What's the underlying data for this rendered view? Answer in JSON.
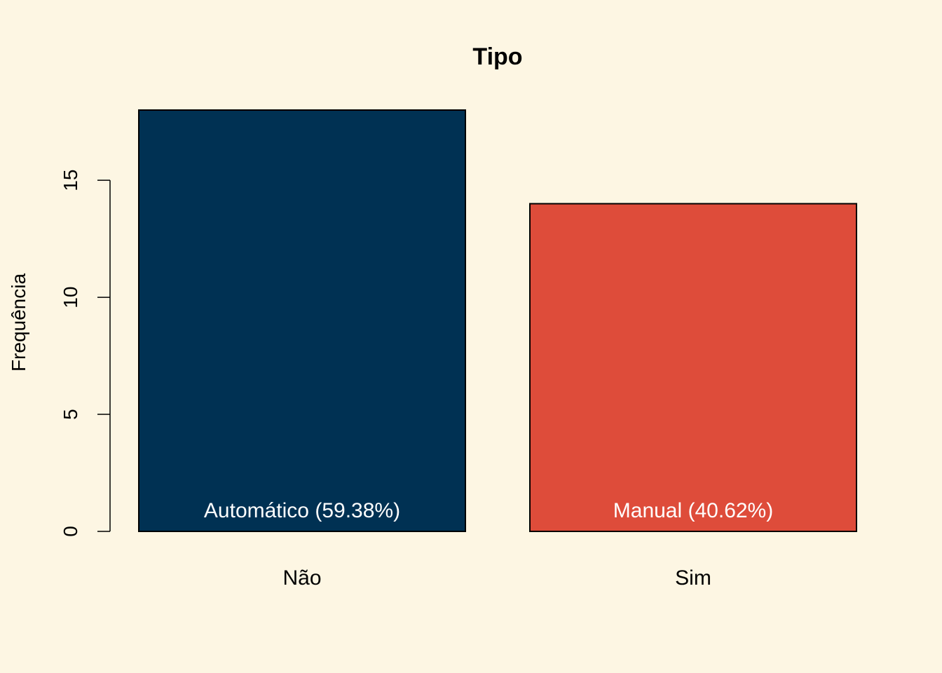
{
  "chart_data": {
    "type": "bar",
    "title": "Tipo",
    "xlabel": "",
    "ylabel": "Frequência",
    "categories": [
      "Não",
      "Sim"
    ],
    "values": [
      18,
      14
    ],
    "bar_labels": [
      "Automático (59.38%)",
      "Manual (40.62%)"
    ],
    "bar_colors": [
      "#003153",
      "#DE4C3A"
    ],
    "yticks": [
      0,
      5,
      10,
      15
    ],
    "ylim": [
      0,
      18
    ],
    "grid": false,
    "background": "#FDF6E3"
  }
}
